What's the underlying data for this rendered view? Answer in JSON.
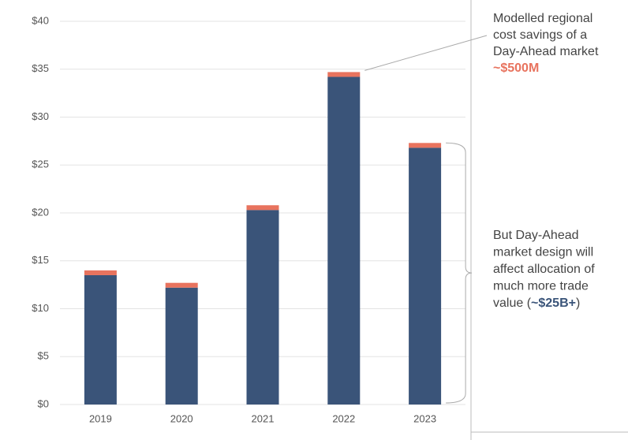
{
  "chart_data": {
    "type": "bar",
    "stacked": true,
    "categories": [
      "2019",
      "2020",
      "2021",
      "2022",
      "2023"
    ],
    "series": [
      {
        "color": "#3a5479",
        "values": [
          13.5,
          12.2,
          20.3,
          34.2,
          26.8
        ]
      },
      {
        "color": "#e8735e",
        "values": [
          0.5,
          0.5,
          0.5,
          0.5,
          0.5
        ]
      }
    ],
    "ylim": [
      0,
      40
    ],
    "yticks": [
      {
        "value": 0,
        "label": "$0"
      },
      {
        "value": 5,
        "label": "$5"
      },
      {
        "value": 10,
        "label": "$10"
      },
      {
        "value": 15,
        "label": "$15"
      },
      {
        "value": 20,
        "label": "$20"
      },
      {
        "value": 25,
        "label": "$25"
      },
      {
        "value": 30,
        "label": "$30"
      },
      {
        "value": 35,
        "label": "$35"
      },
      {
        "value": 40,
        "label": "$40"
      }
    ],
    "grid": true,
    "annotations": [
      {
        "lines": [
          "Modelled regional",
          "cost savings of a",
          "Day-Ahead market"
        ],
        "highlight": "~$500M"
      },
      {
        "lines": [
          "But Day-Ahead",
          "market design will",
          "affect allocation of",
          "much more trade",
          "value ("
        ],
        "highlight": "~$25B+",
        "suffix": ")"
      }
    ]
  }
}
